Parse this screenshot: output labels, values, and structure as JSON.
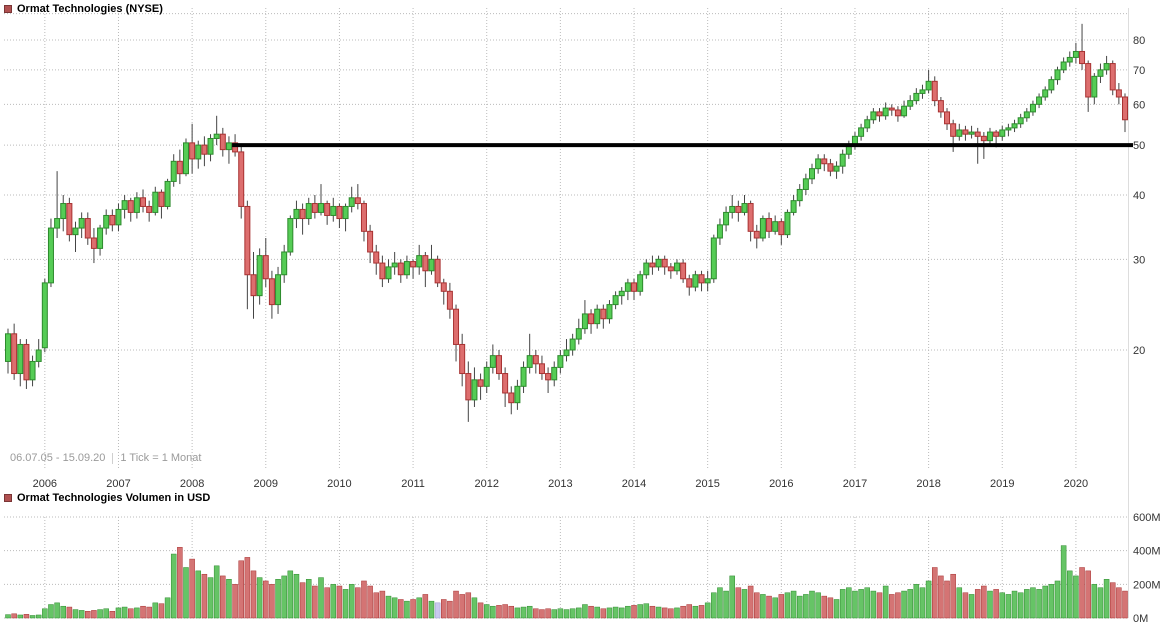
{
  "header": {
    "title": "Ormat Technologies (NYSE)",
    "swatch_color": "#b05050"
  },
  "price_pane": {
    "range_text": "06.07.05 - 15.09.20",
    "tick_text": "1 Tick = 1 Monat"
  },
  "volume_header": {
    "title": "Ormat Technologies Volumen in USD",
    "swatch_color": "#b05050"
  },
  "chart_data": {
    "type": "candlestick",
    "title": "Ormat Technologies (NYSE)",
    "subtitle_volume": "Ormat Technologies Volumen in USD",
    "period": {
      "start": "06.07.05",
      "end": "15.09.20",
      "interval": "1 Tick = 1 Monat"
    },
    "start_month": "2005-07",
    "x_years": [
      "2006",
      "2007",
      "2008",
      "2009",
      "2010",
      "2011",
      "2012",
      "2013",
      "2014",
      "2015",
      "2016",
      "2017",
      "2018",
      "2019",
      "2020"
    ],
    "y_ticks": [
      80,
      70,
      60,
      50,
      40,
      30,
      20
    ],
    "y_grid_unlabeled": [
      90
    ],
    "scale": "log",
    "ylim": [
      12,
      91
    ],
    "grid": true,
    "volume_unit": "USD",
    "volume_ticks": [
      {
        "value": 600,
        "label": "600M"
      },
      {
        "value": 400,
        "label": "400M"
      },
      {
        "value": 200,
        "label": "200M"
      },
      {
        "value": 0,
        "label": "0M"
      }
    ],
    "horizontal_line": {
      "value": 50,
      "start_month_index": 37,
      "color": "#000000"
    },
    "candles": [
      [
        19.0,
        22.0,
        18.0,
        21.5
      ],
      [
        21.5,
        22.5,
        17.5,
        18.0
      ],
      [
        18.0,
        21.0,
        17.0,
        20.5
      ],
      [
        20.5,
        21.0,
        16.8,
        17.5
      ],
      [
        17.5,
        19.5,
        17.0,
        19.0
      ],
      [
        19.0,
        21.0,
        18.5,
        20.0
      ],
      [
        20.2,
        27.5,
        19.8,
        27.0
      ],
      [
        27.0,
        36.0,
        26.5,
        34.5
      ],
      [
        34.5,
        44.5,
        33.0,
        36.0
      ],
      [
        36.0,
        40.0,
        34.0,
        38.5
      ],
      [
        38.5,
        39.5,
        32.5,
        33.5
      ],
      [
        33.5,
        35.5,
        31.0,
        34.5
      ],
      [
        34.5,
        37.0,
        33.0,
        36.0
      ],
      [
        36.0,
        37.0,
        32.0,
        33.0
      ],
      [
        33.0,
        34.5,
        29.5,
        31.5
      ],
      [
        31.5,
        35.0,
        30.5,
        34.5
      ],
      [
        34.5,
        37.5,
        33.5,
        36.5
      ],
      [
        36.5,
        37.5,
        34.0,
        35.0
      ],
      [
        35.0,
        38.5,
        34.0,
        37.5
      ],
      [
        37.5,
        40.0,
        36.0,
        39.0
      ],
      [
        39.0,
        39.5,
        35.5,
        37.0
      ],
      [
        37.0,
        40.5,
        36.0,
        39.5
      ],
      [
        39.5,
        41.0,
        37.0,
        38.0
      ],
      [
        38.0,
        39.0,
        35.5,
        37.0
      ],
      [
        37.0,
        41.5,
        36.5,
        40.5
      ],
      [
        40.5,
        41.0,
        36.0,
        38.0
      ],
      [
        38.0,
        43.0,
        37.5,
        42.5
      ],
      [
        42.5,
        48.0,
        41.5,
        46.5
      ],
      [
        46.5,
        49.0,
        42.0,
        44.0
      ],
      [
        44.0,
        51.5,
        43.5,
        50.5
      ],
      [
        50.5,
        55.0,
        44.0,
        47.0
      ],
      [
        47.0,
        51.0,
        45.0,
        50.0
      ],
      [
        50.0,
        52.0,
        45.5,
        48.0
      ],
      [
        48.0,
        52.5,
        46.5,
        51.5
      ],
      [
        51.5,
        57.0,
        50.0,
        52.5
      ],
      [
        52.5,
        54.0,
        47.5,
        49.0
      ],
      [
        49.0,
        52.0,
        46.0,
        50.5
      ],
      [
        50.5,
        52.5,
        47.5,
        48.5
      ],
      [
        48.5,
        50.0,
        36.0,
        38.0
      ],
      [
        38.0,
        39.0,
        24.0,
        28.0
      ],
      [
        28.0,
        31.0,
        23.0,
        25.5
      ],
      [
        25.5,
        31.5,
        24.5,
        30.5
      ],
      [
        30.5,
        33.0,
        26.5,
        27.5
      ],
      [
        27.5,
        28.5,
        23.0,
        24.5
      ],
      [
        24.5,
        29.0,
        23.5,
        28.0
      ],
      [
        28.0,
        32.0,
        27.0,
        31.0
      ],
      [
        31.0,
        36.5,
        30.5,
        36.0
      ],
      [
        36.0,
        39.0,
        34.5,
        37.5
      ],
      [
        37.5,
        38.5,
        33.5,
        36.0
      ],
      [
        36.0,
        39.5,
        35.0,
        38.5
      ],
      [
        38.5,
        40.0,
        36.0,
        37.0
      ],
      [
        37.0,
        42.0,
        36.5,
        38.5
      ],
      [
        38.5,
        39.0,
        35.0,
        36.5
      ],
      [
        36.5,
        39.5,
        35.5,
        38.0
      ],
      [
        38.0,
        38.5,
        34.5,
        36.0
      ],
      [
        36.0,
        38.5,
        34.0,
        38.0
      ],
      [
        38.0,
        41.5,
        37.0,
        39.5
      ],
      [
        39.5,
        42.0,
        37.5,
        38.5
      ],
      [
        38.5,
        39.0,
        32.5,
        34.0
      ],
      [
        34.0,
        35.0,
        29.5,
        31.0
      ],
      [
        31.0,
        32.0,
        28.0,
        29.5
      ],
      [
        29.5,
        30.5,
        26.5,
        27.5
      ],
      [
        27.5,
        30.0,
        27.0,
        29.0
      ],
      [
        29.0,
        31.0,
        28.0,
        29.5
      ],
      [
        29.5,
        30.0,
        27.0,
        28.0
      ],
      [
        28.0,
        30.5,
        27.5,
        29.7
      ],
      [
        29.7,
        30.0,
        27.5,
        29.0
      ],
      [
        29.0,
        32.0,
        28.0,
        30.5
      ],
      [
        30.5,
        31.0,
        26.5,
        28.5
      ],
      [
        28.5,
        32.0,
        28.0,
        30.0
      ],
      [
        30.0,
        30.5,
        26.5,
        27.0
      ],
      [
        27.0,
        27.5,
        24.5,
        26.0
      ],
      [
        26.0,
        27.0,
        23.0,
        24.0
      ],
      [
        24.0,
        24.5,
        19.0,
        20.5
      ],
      [
        20.5,
        21.5,
        17.0,
        18.0
      ],
      [
        18.0,
        19.0,
        14.5,
        16.0
      ],
      [
        16.0,
        18.5,
        15.5,
        17.5
      ],
      [
        17.5,
        18.0,
        16.0,
        17.0
      ],
      [
        17.0,
        19.0,
        16.5,
        18.5
      ],
      [
        18.5,
        20.5,
        18.0,
        19.5
      ],
      [
        19.5,
        20.0,
        17.5,
        18.0
      ],
      [
        18.0,
        18.5,
        15.5,
        16.5
      ],
      [
        16.5,
        17.0,
        15.0,
        15.8
      ],
      [
        15.8,
        17.5,
        15.3,
        17.0
      ],
      [
        17.0,
        19.0,
        16.5,
        18.5
      ],
      [
        18.5,
        21.5,
        18.0,
        19.5
      ],
      [
        19.5,
        20.0,
        18.0,
        18.8
      ],
      [
        18.8,
        19.5,
        17.5,
        18.0
      ],
      [
        18.0,
        18.5,
        16.5,
        17.5
      ],
      [
        17.5,
        19.0,
        17.0,
        18.5
      ],
      [
        18.5,
        20.0,
        18.0,
        19.5
      ],
      [
        19.5,
        21.0,
        19.0,
        20.0
      ],
      [
        20.0,
        21.5,
        19.5,
        21.0
      ],
      [
        21.0,
        23.0,
        20.5,
        22.0
      ],
      [
        22.0,
        25.0,
        21.5,
        23.5
      ],
      [
        23.5,
        24.0,
        21.5,
        22.5
      ],
      [
        22.5,
        24.5,
        22.0,
        24.0
      ],
      [
        24.0,
        24.5,
        22.0,
        23.0
      ],
      [
        23.0,
        25.0,
        22.5,
        24.5
      ],
      [
        24.5,
        26.0,
        24.0,
        25.5
      ],
      [
        25.5,
        26.5,
        24.5,
        26.0
      ],
      [
        26.0,
        27.5,
        25.0,
        27.0
      ],
      [
        27.0,
        27.5,
        25.0,
        26.0
      ],
      [
        26.0,
        28.5,
        25.5,
        28.0
      ],
      [
        28.0,
        30.0,
        27.5,
        29.5
      ],
      [
        29.5,
        30.5,
        28.0,
        29.0
      ],
      [
        29.0,
        30.5,
        28.5,
        30.0
      ],
      [
        30.0,
        30.5,
        28.0,
        29.0
      ],
      [
        29.0,
        29.5,
        27.5,
        28.5
      ],
      [
        28.5,
        30.0,
        28.0,
        29.5
      ],
      [
        29.5,
        30.0,
        27.0,
        27.5
      ],
      [
        27.5,
        28.0,
        25.5,
        26.5
      ],
      [
        26.5,
        28.5,
        26.0,
        28.0
      ],
      [
        28.0,
        28.5,
        26.0,
        27.0
      ],
      [
        27.0,
        28.5,
        26.0,
        27.5
      ],
      [
        27.5,
        33.5,
        27.0,
        33.0
      ],
      [
        33.0,
        36.0,
        32.0,
        35.0
      ],
      [
        35.0,
        38.0,
        34.0,
        37.0
      ],
      [
        37.0,
        40.0,
        36.0,
        38.0
      ],
      [
        38.0,
        39.0,
        35.5,
        37.0
      ],
      [
        37.0,
        40.0,
        36.5,
        38.5
      ],
      [
        38.5,
        39.0,
        32.5,
        34.0
      ],
      [
        34.0,
        35.0,
        31.5,
        33.0
      ],
      [
        33.0,
        36.5,
        32.5,
        36.0
      ],
      [
        36.0,
        37.0,
        33.0,
        34.0
      ],
      [
        34.0,
        36.5,
        33.5,
        35.5
      ],
      [
        35.5,
        36.0,
        32.0,
        33.5
      ],
      [
        33.5,
        37.5,
        33.0,
        37.0
      ],
      [
        37.0,
        40.0,
        36.5,
        39.0
      ],
      [
        39.0,
        42.0,
        38.0,
        41.0
      ],
      [
        41.0,
        44.0,
        40.0,
        43.0
      ],
      [
        43.0,
        46.0,
        42.0,
        45.0
      ],
      [
        45.0,
        48.0,
        44.0,
        47.0
      ],
      [
        47.0,
        48.0,
        44.5,
        46.0
      ],
      [
        46.0,
        47.0,
        43.5,
        44.5
      ],
      [
        44.5,
        46.5,
        43.0,
        45.5
      ],
      [
        45.5,
        49.0,
        44.0,
        48.0
      ],
      [
        48.0,
        51.0,
        47.0,
        50.0
      ],
      [
        50.0,
        53.0,
        49.0,
        52.0
      ],
      [
        52.0,
        55.0,
        51.0,
        54.0
      ],
      [
        54.0,
        57.0,
        53.0,
        56.0
      ],
      [
        56.0,
        59.0,
        55.0,
        58.0
      ],
      [
        58.0,
        59.0,
        55.5,
        57.0
      ],
      [
        57.0,
        60.5,
        56.0,
        59.0
      ],
      [
        59.0,
        60.0,
        57.0,
        58.5
      ],
      [
        58.5,
        59.5,
        55.5,
        57.0
      ],
      [
        57.0,
        61.0,
        56.5,
        59.5
      ],
      [
        59.5,
        62.5,
        58.5,
        61.0
      ],
      [
        61.0,
        64.5,
        60.0,
        63.0
      ],
      [
        63.0,
        65.5,
        61.5,
        64.0
      ],
      [
        64.0,
        70.0,
        63.0,
        66.5
      ],
      [
        66.5,
        68.0,
        59.5,
        61.0
      ],
      [
        61.0,
        62.0,
        56.5,
        58.0
      ],
      [
        58.0,
        59.0,
        53.5,
        55.0
      ],
      [
        55.0,
        56.0,
        48.5,
        52.0
      ],
      [
        52.0,
        55.0,
        51.0,
        53.5
      ],
      [
        53.5,
        54.5,
        51.0,
        52.5
      ],
      [
        52.5,
        54.5,
        51.5,
        53.0
      ],
      [
        53.0,
        54.0,
        46.0,
        52.0
      ],
      [
        52.0,
        53.0,
        47.0,
        51.0
      ],
      [
        51.0,
        54.0,
        50.0,
        53.0
      ],
      [
        53.0,
        53.5,
        49.5,
        52.0
      ],
      [
        52.0,
        54.5,
        51.0,
        53.5
      ],
      [
        53.5,
        55.0,
        52.0,
        54.0
      ],
      [
        54.0,
        56.0,
        53.0,
        55.0
      ],
      [
        55.0,
        57.5,
        54.0,
        56.5
      ],
      [
        56.5,
        59.0,
        55.5,
        58.0
      ],
      [
        58.0,
        61.0,
        57.0,
        60.0
      ],
      [
        60.0,
        63.0,
        59.0,
        62.0
      ],
      [
        62.0,
        65.0,
        61.0,
        64.0
      ],
      [
        64.0,
        68.0,
        63.0,
        67.0
      ],
      [
        67.0,
        71.0,
        65.5,
        70.0
      ],
      [
        70.0,
        74.0,
        69.0,
        72.5
      ],
      [
        72.5,
        76.0,
        71.0,
        74.0
      ],
      [
        74.0,
        79.0,
        72.0,
        76.0
      ],
      [
        76.0,
        86.0,
        70.0,
        72.0
      ],
      [
        72.0,
        73.0,
        58.0,
        62.0
      ],
      [
        62.0,
        69.0,
        60.0,
        68.0
      ],
      [
        68.0,
        72.0,
        66.0,
        70.0
      ],
      [
        70.0,
        74.5,
        68.5,
        72.0
      ],
      [
        72.0,
        73.0,
        62.5,
        64.0
      ],
      [
        64.0,
        66.0,
        60.0,
        62.0
      ],
      [
        62.0,
        63.0,
        53.0,
        56.0
      ]
    ],
    "volumes": [
      20,
      25,
      18,
      22,
      15,
      18,
      55,
      80,
      90,
      70,
      65,
      50,
      45,
      40,
      45,
      50,
      55,
      40,
      60,
      65,
      55,
      60,
      70,
      65,
      90,
      85,
      120,
      380,
      420,
      300,
      350,
      280,
      260,
      240,
      310,
      250,
      230,
      200,
      340,
      360,
      280,
      240,
      220,
      200,
      230,
      250,
      280,
      260,
      210,
      230,
      190,
      240,
      180,
      200,
      190,
      170,
      200,
      180,
      220,
      190,
      150,
      160,
      130,
      120,
      110,
      100,
      110,
      120,
      140,
      100,
      90,
      110,
      100,
      160,
      140,
      150,
      120,
      90,
      80,
      70,
      75,
      80,
      70,
      60,
      65,
      70,
      55,
      50,
      55,
      50,
      55,
      50,
      55,
      60,
      80,
      70,
      65,
      55,
      60,
      65,
      60,
      70,
      75,
      80,
      85,
      70,
      65,
      60,
      55,
      60,
      70,
      80,
      70,
      75,
      90,
      150,
      180,
      160,
      250,
      180,
      170,
      190,
      150,
      140,
      130,
      120,
      140,
      150,
      160,
      130,
      140,
      160,
      150,
      130,
      120,
      110,
      170,
      180,
      160,
      170,
      180,
      160,
      150,
      190,
      140,
      150,
      160,
      170,
      200,
      180,
      220,
      300,
      250,
      220,
      260,
      180,
      150,
      140,
      170,
      190,
      160,
      170,
      150,
      140,
      160,
      150,
      170,
      180,
      170,
      190,
      200,
      220,
      430,
      280,
      250,
      300,
      280,
      200,
      180,
      230,
      210,
      180,
      160
    ],
    "volume_highlight": {
      "index": 70,
      "color": "#c9c9ef"
    },
    "colors": {
      "up": "#55cc55",
      "up_border": "#2d8a2d",
      "down": "#dd6e6e",
      "down_border": "#a83232",
      "volume_up": "#66c466",
      "volume_down": "#d47474",
      "wick": "#444444",
      "grid": "#bbbbbb",
      "resistance": "#000000"
    },
    "legend_position": "top-left"
  }
}
